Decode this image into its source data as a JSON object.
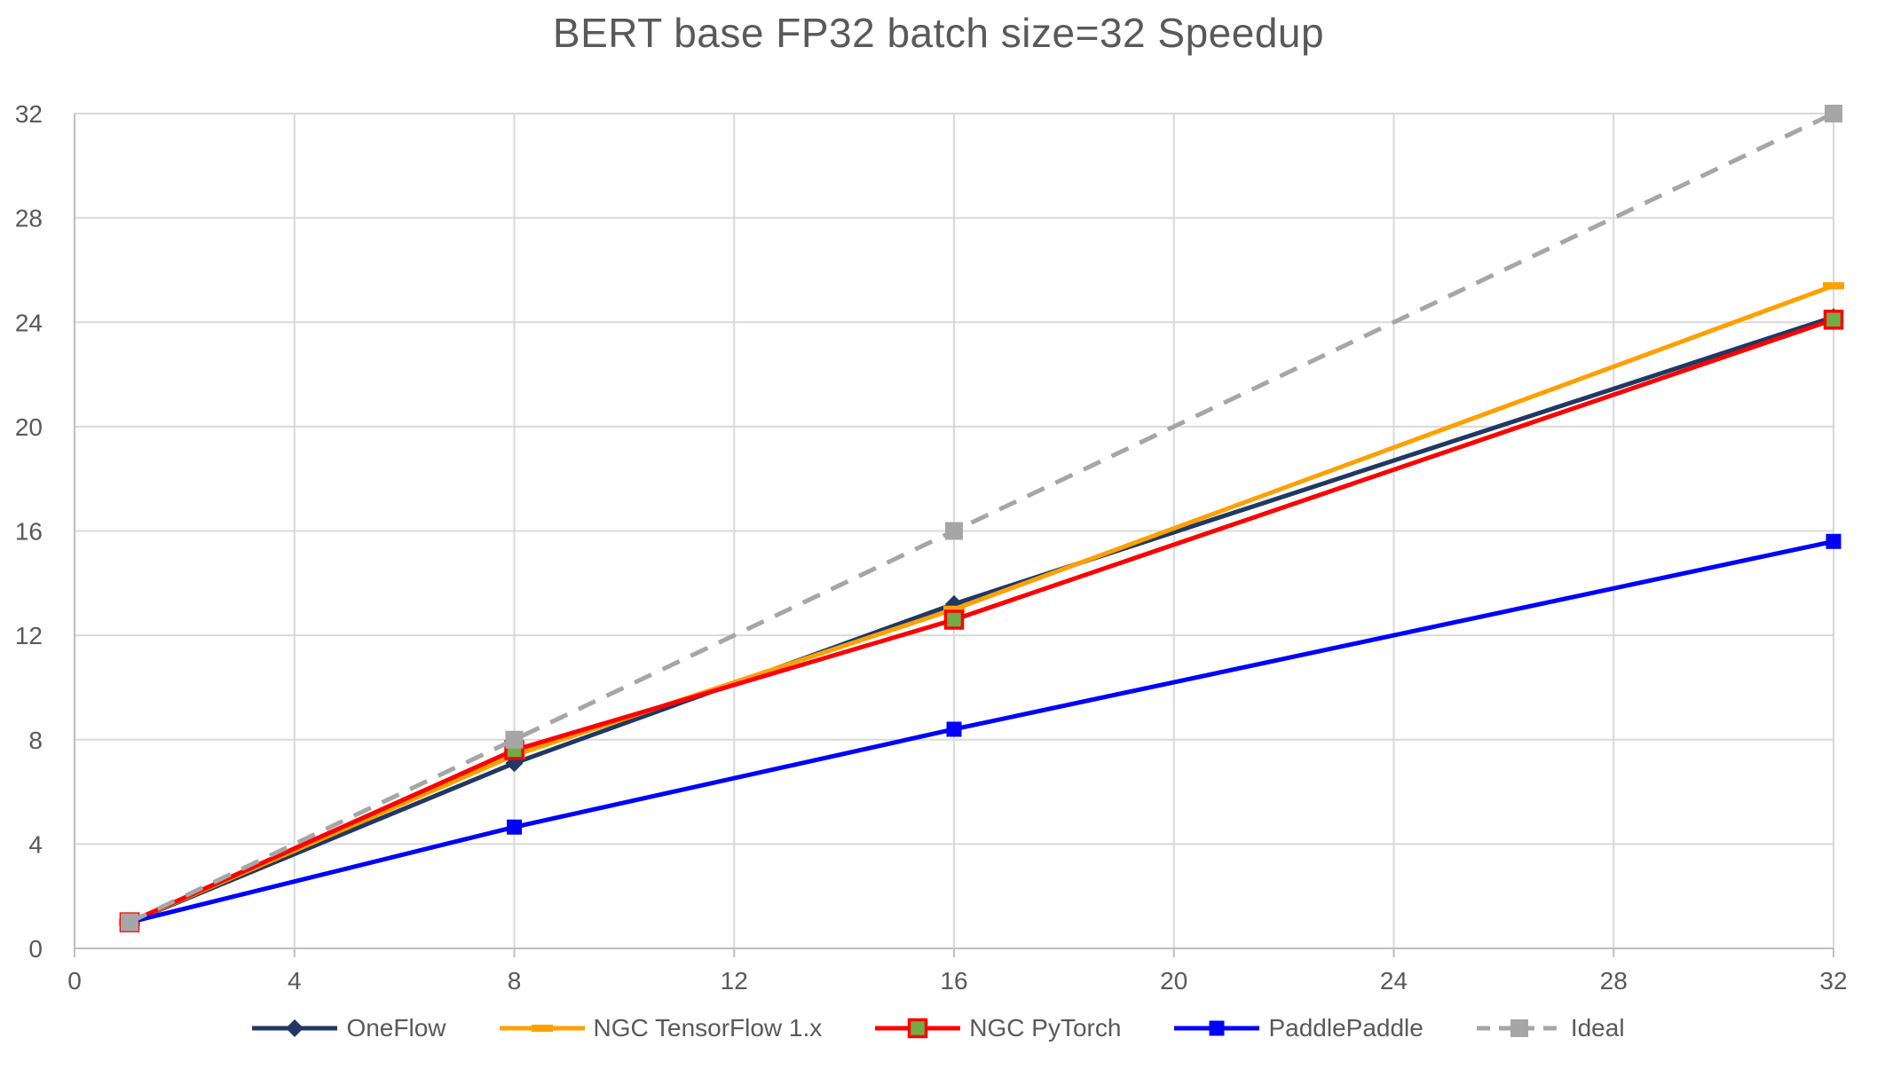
{
  "chart_data": {
    "type": "line",
    "title": "BERT base FP32 batch size=32 Speedup",
    "xlabel": "",
    "ylabel": "",
    "x": [
      1,
      8,
      16,
      32
    ],
    "series": [
      {
        "name": "OneFlow",
        "values": [
          1,
          7.1,
          13.2,
          24.2
        ],
        "color": "#1F3864",
        "line": "solid",
        "marker": "diamond",
        "marker_size": 18
      },
      {
        "name": "NGC TensorFlow 1.x",
        "values": [
          1,
          7.4,
          13.0,
          25.4
        ],
        "color": "#FFA000",
        "line": "solid",
        "marker": "dash",
        "marker_size": 20
      },
      {
        "name": "NGC PyTorch",
        "values": [
          1,
          7.6,
          12.6,
          24.1
        ],
        "color": "#FF0000",
        "line": "solid",
        "marker": "square",
        "marker_size": 19,
        "marker_fill": "#70AD47",
        "marker_stroke": "#FF0000"
      },
      {
        "name": "PaddlePaddle",
        "values": [
          1,
          4.65,
          8.4,
          15.6
        ],
        "color": "#0000FF",
        "line": "solid",
        "marker": "square",
        "marker_size": 17,
        "marker_fill": "#0000FF"
      },
      {
        "name": "Ideal",
        "values": [
          1,
          8,
          16,
          32
        ],
        "color": "#A6A6A6",
        "line": "dashed",
        "marker": "square",
        "marker_size": 20,
        "marker_fill": "#A6A6A6"
      }
    ],
    "xlim": [
      0,
      32
    ],
    "ylim": [
      0,
      32
    ],
    "x_ticks": [
      0,
      4,
      8,
      12,
      16,
      20,
      24,
      28,
      32
    ],
    "y_ticks": [
      0,
      4,
      8,
      12,
      16,
      20,
      24,
      28,
      32
    ],
    "grid": true,
    "legend_position": "bottom",
    "colors": {
      "text": "#595959",
      "grid": "#D9D9D9",
      "axis": "#BFBFBF",
      "background": "#FFFFFF"
    }
  }
}
